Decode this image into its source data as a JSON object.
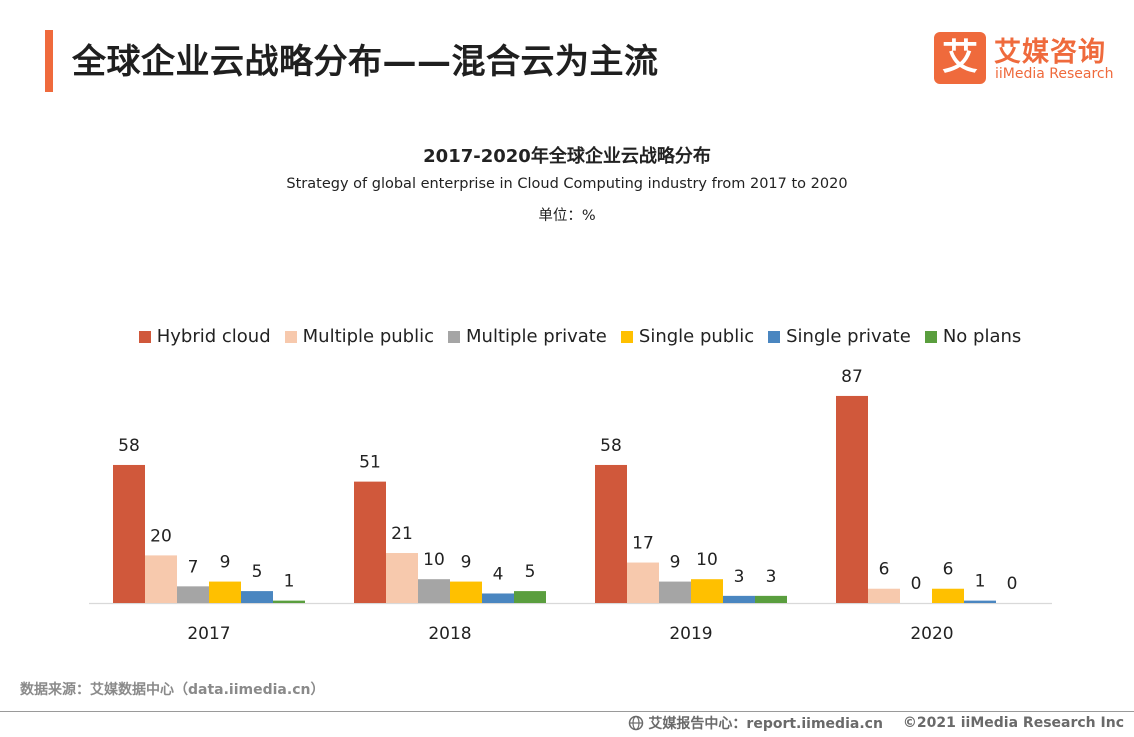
{
  "page": {
    "title": "全球企业云战略分布——混合云为主流"
  },
  "logo": {
    "mark": "艾",
    "name_cn": "艾媒咨询",
    "name_en": "iiMedia Research"
  },
  "chart_data": {
    "type": "bar",
    "title": "2017-2020年全球企业云战略分布",
    "subtitle": "Strategy of global enterprise in Cloud Computing industry from 2017 to 2020",
    "unit_label": "单位：%",
    "categories": [
      "2017",
      "2018",
      "2019",
      "2020"
    ],
    "series": [
      {
        "name": "Hybrid cloud",
        "color": "#d0583b",
        "values": [
          58,
          51,
          58,
          87
        ]
      },
      {
        "name": "Multiple public",
        "color": "#f7c9ad",
        "values": [
          20,
          21,
          17,
          6
        ]
      },
      {
        "name": "Multiple private",
        "color": "#a5a5a5",
        "values": [
          7,
          10,
          9,
          0
        ]
      },
      {
        "name": "Single public",
        "color": "#ffc000",
        "values": [
          9,
          9,
          10,
          6
        ]
      },
      {
        "name": "Single private",
        "color": "#4a86c0",
        "values": [
          5,
          4,
          3,
          1
        ]
      },
      {
        "name": "No plans",
        "color": "#5a9e3e",
        "values": [
          1,
          5,
          3,
          0
        ]
      }
    ],
    "ylim": [
      0,
      100
    ],
    "grid": false,
    "legend_position": "top"
  },
  "source": "数据来源：艾媒数据中心（data.iimedia.cn）",
  "footer": {
    "globe_icon": "globe-icon",
    "report_site": "艾媒报告中心：report.iimedia.cn",
    "copyright": "©2021  iiMedia Research  Inc"
  }
}
